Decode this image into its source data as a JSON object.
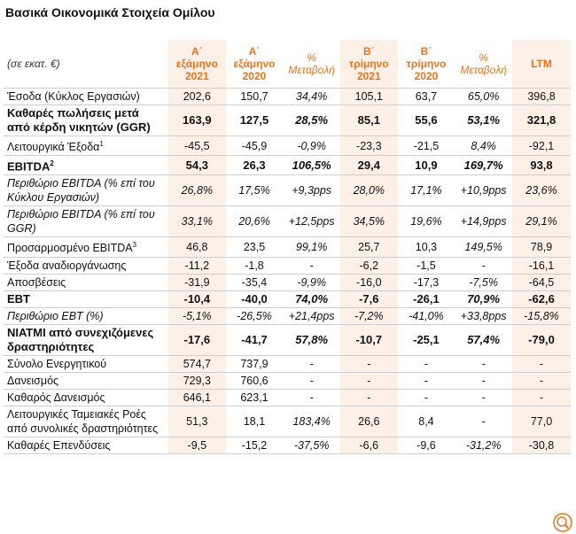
{
  "header": {
    "title": "Βασικά Οικονομικά Στοιχεία Ομίλου"
  },
  "table": {
    "unit": "(σε εκατ. €)",
    "columns": [
      {
        "lines": [
          "Α΄",
          "εξάμηνο",
          "2021"
        ]
      },
      {
        "lines": [
          "Α΄",
          "εξάμηνο",
          "2020"
        ]
      },
      {
        "lines": [
          "%",
          "Μεταβολή"
        ]
      },
      {
        "lines": [
          "Β΄",
          "τρίμηνο",
          "2021"
        ]
      },
      {
        "lines": [
          "Β΄",
          "τρίμηνο",
          "2020"
        ]
      },
      {
        "lines": [
          "%",
          "Μεταβολή"
        ]
      },
      {
        "lines": [
          "LTM"
        ]
      }
    ],
    "rows": [
      {
        "label": "Έσοδα (Κύκλος Εργασιών)",
        "cells": [
          "202,6",
          "150,7",
          "34,4%",
          "105,1",
          "63,7",
          "65,0%",
          "396,8"
        ]
      },
      {
        "label": "Καθαρές πωλήσεις μετά από κέρδη νικητών (GGR)",
        "cells": [
          "163,9",
          "127,5",
          "28,5%",
          "85,1",
          "55,6",
          "53,1%",
          "321,8"
        ]
      },
      {
        "label": "Λειτουργικά Έξοδα",
        "note": "1",
        "cells": [
          "-45,5",
          "-45,9",
          "-0,9%",
          "-23,3",
          "-21,5",
          "8,4%",
          "-92,1"
        ]
      },
      {
        "label": "EBITDA",
        "note": "2",
        "cells": [
          "54,3",
          "26,3",
          "106,5%",
          "29,4",
          "10,9",
          "169,7%",
          "93,8"
        ]
      },
      {
        "label": "Περιθώριο EBITDA (% επί του Κύκλου Εργασιών)",
        "cells": [
          "26,8%",
          "17,5%",
          "+9,3pps",
          "28,0%",
          "17,1%",
          "+10,9pps",
          "23,6%"
        ]
      },
      {
        "label": "Περιθώριο EBITDA (% επί του GGR)",
        "cells": [
          "33,1%",
          "20,6%",
          "+12,5pps",
          "34,5%",
          "19,6%",
          "+14,9pps",
          "29,1%"
        ]
      },
      {
        "label": "Προσαρμοσμένο EBITDA",
        "note": "3",
        "cells": [
          "46,8",
          "23,5",
          "99,1%",
          "25,7",
          "10,3",
          "149,5%",
          "78,9"
        ]
      },
      {
        "label": "Έξοδα αναδιοργάνωσης",
        "cells": [
          "-11,2",
          "-1,8",
          "-",
          "-6,2",
          "-1,5",
          "-",
          "-16,1"
        ]
      },
      {
        "label": "Αποσβέσεις",
        "cells": [
          "-31,9",
          "-35,4",
          "-9,9%",
          "-16,0",
          "-17,3",
          "-7,5%",
          "-64,5"
        ]
      },
      {
        "label": "EBT",
        "cells": [
          "-10,4",
          "-40,0",
          "74,0%",
          "-7,6",
          "-26,1",
          "70,9%",
          "-62,6"
        ]
      },
      {
        "label": "Περιθώριο EBT (%)",
        "cells": [
          "-5,1%",
          "-26,5%",
          "+21,4pps",
          "-7,2%",
          "-41,0%",
          "+33,8pps",
          "-15,8%"
        ]
      },
      {
        "label": "ΝΙΑΤΜΙ από συνεχιζόμενες δραστηριότητες",
        "cells": [
          "-17,6",
          "-41,7",
          "57,8%",
          "-10,7",
          "-25,1",
          "57,4%",
          "-79,0"
        ]
      },
      {
        "label": "Σύνολο Ενεργητικού",
        "cells": [
          "574,7",
          "737,9",
          "-",
          "-",
          "-",
          "-",
          "-"
        ]
      },
      {
        "label": "Δανεισμός",
        "cells": [
          "729,3",
          "760,6",
          "-",
          "-",
          "-",
          "-",
          "-"
        ]
      },
      {
        "label": "Καθαρός Δανεισμός",
        "cells": [
          "646,1",
          "623,1",
          "-",
          "-",
          "-",
          "-",
          "-"
        ]
      },
      {
        "label": "Λειτουργικές Ταμειακές Ροές από συνολικές δραστηριότητες",
        "cells": [
          "51,3",
          "18,1",
          "183,4%",
          "26,6",
          "8,4",
          "-",
          "77,0"
        ]
      },
      {
        "label": "Καθαρές Επενδύσεις",
        "cells": [
          "-9,5",
          "-15,2",
          "-37,5%",
          "-6,6",
          "-9,6",
          "-31,2%",
          "-30,8"
        ]
      }
    ]
  }
}
